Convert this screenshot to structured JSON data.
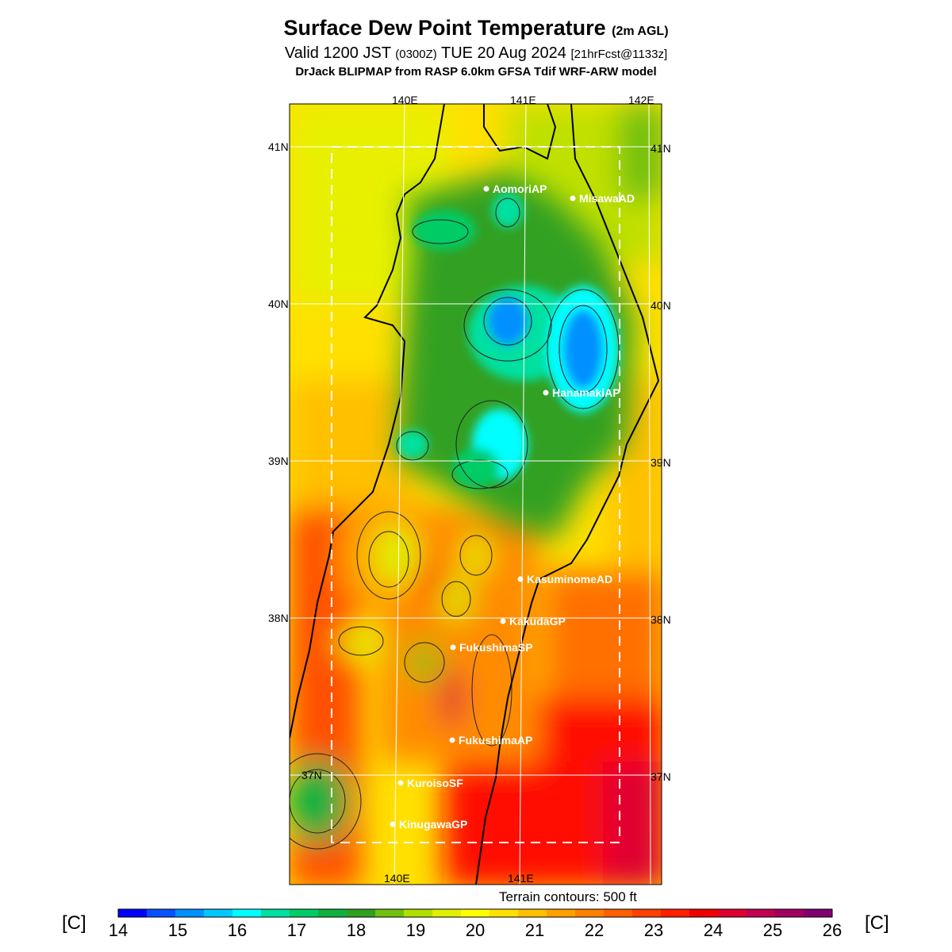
{
  "header": {
    "title": "Surface Dew Point Temperature",
    "title_suffix": "(2m AGL)",
    "valid_prefix": "Valid 1200 JST",
    "valid_zulu": "(0300Z)",
    "valid_date": "TUE 20 Aug 2024",
    "forecast_info": "[21hrFcst@1133z]",
    "model_line": "DrJack BLIPMAP from RASP 6.0km GFSA Tdif WRF-ARW model"
  },
  "map": {
    "lon_labels": [
      "140E",
      "141E",
      "142E"
    ],
    "lat_labels": [
      "41N",
      "40N",
      "39N",
      "38N",
      "37N"
    ],
    "stations": [
      {
        "name": "AomoriAP"
      },
      {
        "name": "MisawaAD"
      },
      {
        "name": "HanamakiAP"
      },
      {
        "name": "KasuminomeAD"
      },
      {
        "name": "KakudaGP"
      },
      {
        "name": "FukushimaSP"
      },
      {
        "name": "FukushimaAP"
      },
      {
        "name": "KuroisoSF"
      },
      {
        "name": "KinugawaGP"
      }
    ],
    "terrain_note": "Terrain contours: 500 ft"
  },
  "colorbar": {
    "unit": "[C]",
    "ticks": [
      "14",
      "15",
      "16",
      "17",
      "18",
      "19",
      "20",
      "21",
      "22",
      "23",
      "24",
      "25",
      "26"
    ],
    "colors": [
      "#0000ff",
      "#0a50ff",
      "#0090ff",
      "#00c8ff",
      "#00ffff",
      "#00e0a0",
      "#00cc66",
      "#10b040",
      "#30a020",
      "#70c010",
      "#b0e000",
      "#e0f000",
      "#ffff00",
      "#ffe000",
      "#ffc000",
      "#ffa000",
      "#ff8000",
      "#ff6000",
      "#ff4000",
      "#ff2000",
      "#f00000",
      "#e00030",
      "#c00050",
      "#a00060",
      "#800070"
    ]
  }
}
